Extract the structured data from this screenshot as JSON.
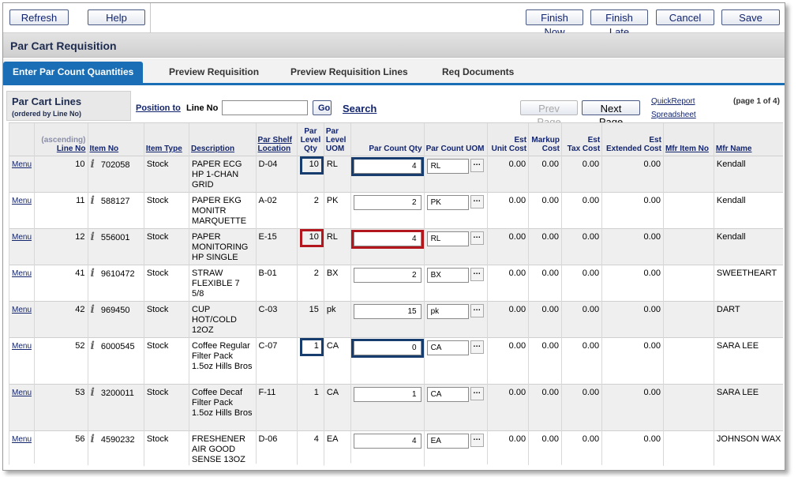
{
  "toolbar": {
    "refresh": "Refresh",
    "help": "Help",
    "finish_now": "Finish Now",
    "finish_late": "Finish Late",
    "cancel": "Cancel",
    "save": "Save"
  },
  "page_title": "Par Cart Requisition",
  "tabs": [
    {
      "label": "Enter Par Count Quantities",
      "active": true
    },
    {
      "label": "Preview Requisition",
      "active": false
    },
    {
      "label": "Preview Requisition Lines",
      "active": false
    },
    {
      "label": "Req Documents",
      "active": false
    }
  ],
  "lines_header": {
    "title": "Par Cart Lines",
    "subtitle": "(ordered by Line No)",
    "position_to": "Position to",
    "line_no_label": "Line No",
    "line_no_value": "",
    "go": "Go",
    "search": "Search",
    "prev_page": "Prev Page",
    "next_page": "Next Page",
    "quick_report": "QuickReport",
    "spreadsheet": "Spreadsheet",
    "page_info": "(page 1 of 4)"
  },
  "columns": {
    "ascending": "(ascending)",
    "line_no": "Line No",
    "item_no": "Item No",
    "item_type": "Item Type",
    "description": "Description",
    "par_shelf_location_1": "Par Shelf",
    "par_shelf_location_2": "Location",
    "par_level_qty_1": "Par",
    "par_level_qty_2": "Level",
    "par_level_qty_3": "Qty",
    "par_level_uom_1": "Par",
    "par_level_uom_2": "Level",
    "par_level_uom_3": "UOM",
    "par_count_qty": "Par Count Qty",
    "par_count_uom": "Par Count UOM",
    "est_unit_cost_1": "Est",
    "est_unit_cost_2": "Unit Cost",
    "markup_cost_1": "Markup",
    "markup_cost_2": "Cost",
    "est_tax_cost_1": "Est",
    "est_tax_cost_2": "Tax Cost",
    "est_extended_cost_1": "Est",
    "est_extended_cost_2": "Extended Cost",
    "mfr_item_no": "Mfr Item No",
    "mfr_name": "Mfr Name"
  },
  "rows": [
    {
      "menu": "Menu",
      "line_no": "10",
      "info": "i",
      "item_no": "702058",
      "item_type": "Stock",
      "description": "PAPER ECG HP 1-CHAN GRID",
      "location": "D-04",
      "par_qty": "10",
      "par_uom": "RL",
      "count_qty": "4",
      "count_uom": "RL",
      "unit_cost": "0.00",
      "markup": "0.00",
      "tax": "0.00",
      "extended": "0.00",
      "mfr_item_no": "",
      "mfr_name": "Kendall",
      "highlight": "blue"
    },
    {
      "menu": "Menu",
      "line_no": "11",
      "info": "i",
      "item_no": "588127",
      "item_type": "Stock",
      "description": "PAPER EKG MONITR MARQUETTE",
      "location": "A-02",
      "par_qty": "2",
      "par_uom": "PK",
      "count_qty": "2",
      "count_uom": "PK",
      "unit_cost": "0.00",
      "markup": "0.00",
      "tax": "0.00",
      "extended": "0.00",
      "mfr_item_no": "",
      "mfr_name": "Kendall",
      "highlight": ""
    },
    {
      "menu": "Menu",
      "line_no": "12",
      "info": "i",
      "item_no": "556001",
      "item_type": "Stock",
      "description": "PAPER MONITORING HP SINGLE",
      "location": "E-15",
      "par_qty": "10",
      "par_uom": "RL",
      "count_qty": "4",
      "count_uom": "RL",
      "unit_cost": "0.00",
      "markup": "0.00",
      "tax": "0.00",
      "extended": "0.00",
      "mfr_item_no": "",
      "mfr_name": "Kendall",
      "highlight": "red"
    },
    {
      "menu": "Menu",
      "line_no": "41",
      "info": "i",
      "item_no": "9610472",
      "item_type": "Stock",
      "description": "STRAW FLEXIBLE 7 5/8",
      "location": "B-01",
      "par_qty": "2",
      "par_uom": "BX",
      "count_qty": "2",
      "count_uom": "BX",
      "unit_cost": "0.00",
      "markup": "0.00",
      "tax": "0.00",
      "extended": "0.00",
      "mfr_item_no": "",
      "mfr_name": "SWEETHEART",
      "highlight": ""
    },
    {
      "menu": "Menu",
      "line_no": "42",
      "info": "i",
      "item_no": "969450",
      "item_type": "Stock",
      "description": "CUP HOT/COLD 12OZ",
      "location": "C-03",
      "par_qty": "15",
      "par_uom": "pk",
      "count_qty": "15",
      "count_uom": "pk",
      "unit_cost": "0.00",
      "markup": "0.00",
      "tax": "0.00",
      "extended": "0.00",
      "mfr_item_no": "",
      "mfr_name": "DART",
      "highlight": ""
    },
    {
      "menu": "Menu",
      "line_no": "52",
      "info": "i",
      "item_no": "6000545",
      "item_type": "Stock",
      "description": "Coffee Regular Filter Pack 1.5oz Hills Bros",
      "location": "C-07",
      "par_qty": "1",
      "par_uom": "CA",
      "count_qty": "0",
      "count_uom": "CA",
      "unit_cost": "0.00",
      "markup": "0.00",
      "tax": "0.00",
      "extended": "0.00",
      "mfr_item_no": "",
      "mfr_name": "SARA LEE",
      "highlight": "blue"
    },
    {
      "menu": "Menu",
      "line_no": "53",
      "info": "i",
      "item_no": "3200011",
      "item_type": "Stock",
      "description": "Coffee Decaf Filter Pack 1.5oz Hills Bros",
      "location": "F-11",
      "par_qty": "1",
      "par_uom": "CA",
      "count_qty": "1",
      "count_uom": "CA",
      "unit_cost": "0.00",
      "markup": "0.00",
      "tax": "0.00",
      "extended": "0.00",
      "mfr_item_no": "",
      "mfr_name": "SARA LEE",
      "highlight": ""
    },
    {
      "menu": "Menu",
      "line_no": "56",
      "info": "i",
      "item_no": "4590232",
      "item_type": "Stock",
      "description": "FRESHENER AIR GOOD SENSE 13OZ",
      "location": "D-06",
      "par_qty": "4",
      "par_uom": "EA",
      "count_qty": "4",
      "count_uom": "EA",
      "unit_cost": "0.00",
      "markup": "0.00",
      "tax": "0.00",
      "extended": "0.00",
      "mfr_item_no": "",
      "mfr_name": "JOHNSON WAX",
      "highlight": ""
    }
  ],
  "colors": {
    "tab_active": "#1a6eb5",
    "highlight_blue": "#173d6e",
    "highlight_red": "#b3161c",
    "link": "#13256e"
  }
}
